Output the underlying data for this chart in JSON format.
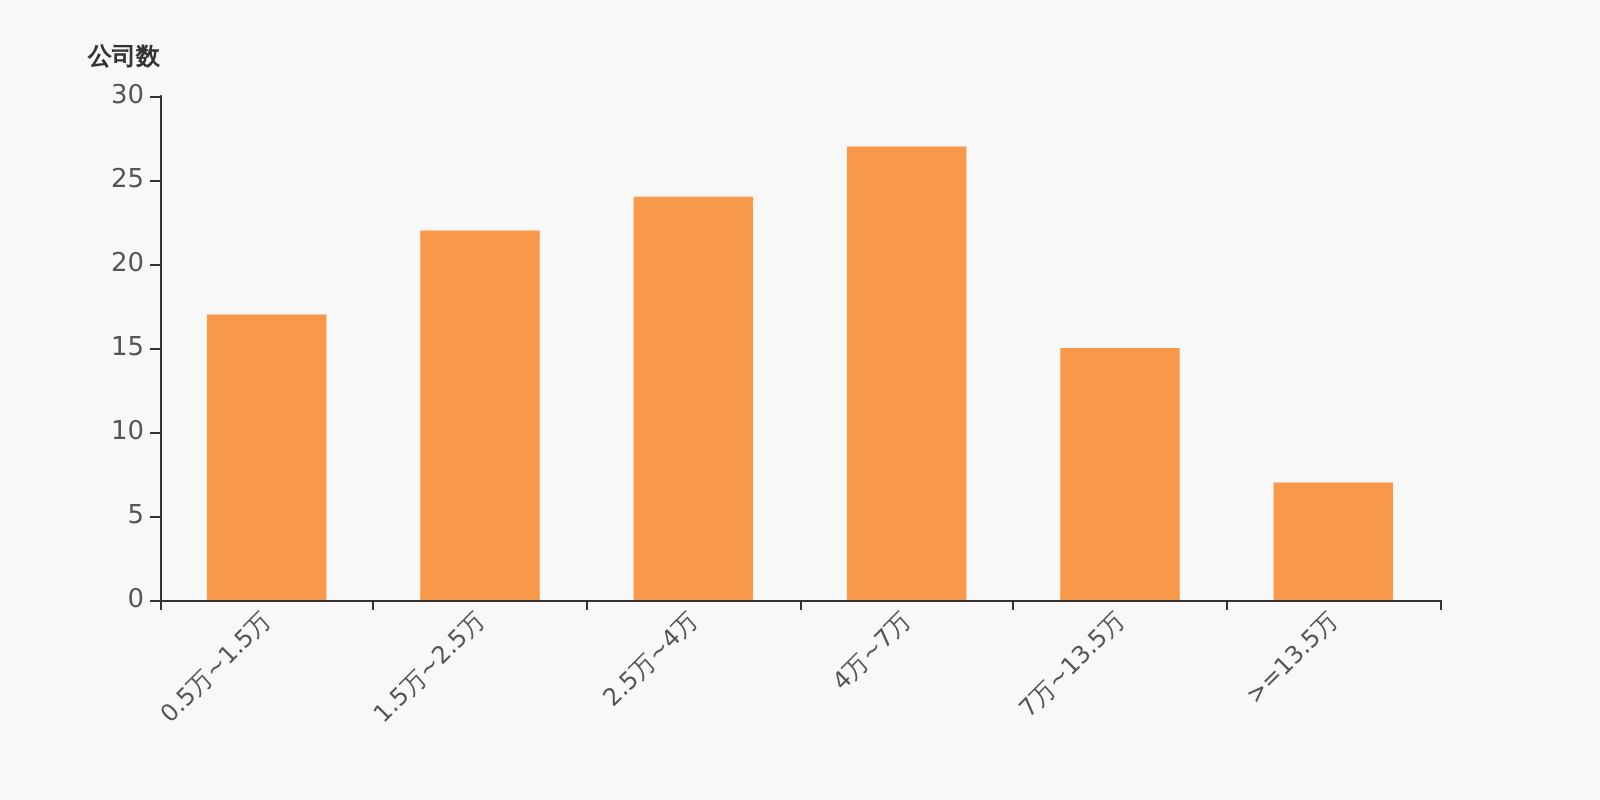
{
  "chart_data": {
    "type": "bar",
    "ylabel": "公司数",
    "categories": [
      "0.5万~1.5万",
      "1.5万~2.5万",
      "2.5万~4万",
      "4万~7万",
      "7万~13.5万",
      ">=13.5万"
    ],
    "values": [
      17,
      22,
      24,
      27,
      15,
      7
    ],
    "color": "#f8994a",
    "ylim": [
      0,
      30
    ],
    "yticks": [
      0,
      5,
      10,
      15,
      20,
      25,
      30
    ],
    "grid": false
  }
}
